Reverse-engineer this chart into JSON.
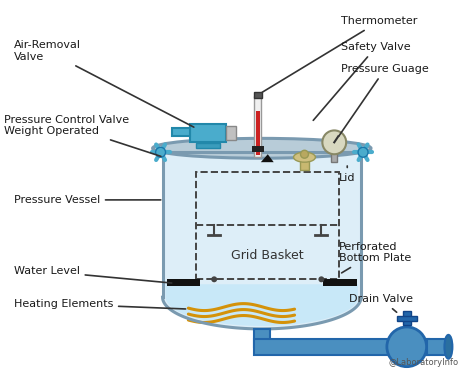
{
  "bg_color": "#ffffff",
  "vessel_fill": "#ddeef8",
  "vessel_outline": "#7a9ab0",
  "water_fill": "#c8e8f8",
  "heating_color": "#d4920a",
  "pipe_color": "#4a8fc0",
  "pipe_dark": "#2266aa",
  "clamp_color": "#4aaccc",
  "watermark": "@LaboratoryInfo",
  "labels": {
    "thermometer": "Thermometer",
    "safety_valve": "Safety Valve",
    "pressure_guage": "Pressure Guage",
    "air_removal_valve": "Air-Removal\nValve",
    "pressure_control_valve": "Pressure Control Valve\nWeight Operated",
    "lid": "Lid",
    "pressure_vessel": "Pressure Vessel",
    "grid_basket": "Grid Basket",
    "perforated_bottom": "Perforated\nBottom Plate",
    "water_level": "Water Level",
    "heating_elements": "Heating Elements",
    "drain_valve": "Drain Valve"
  }
}
